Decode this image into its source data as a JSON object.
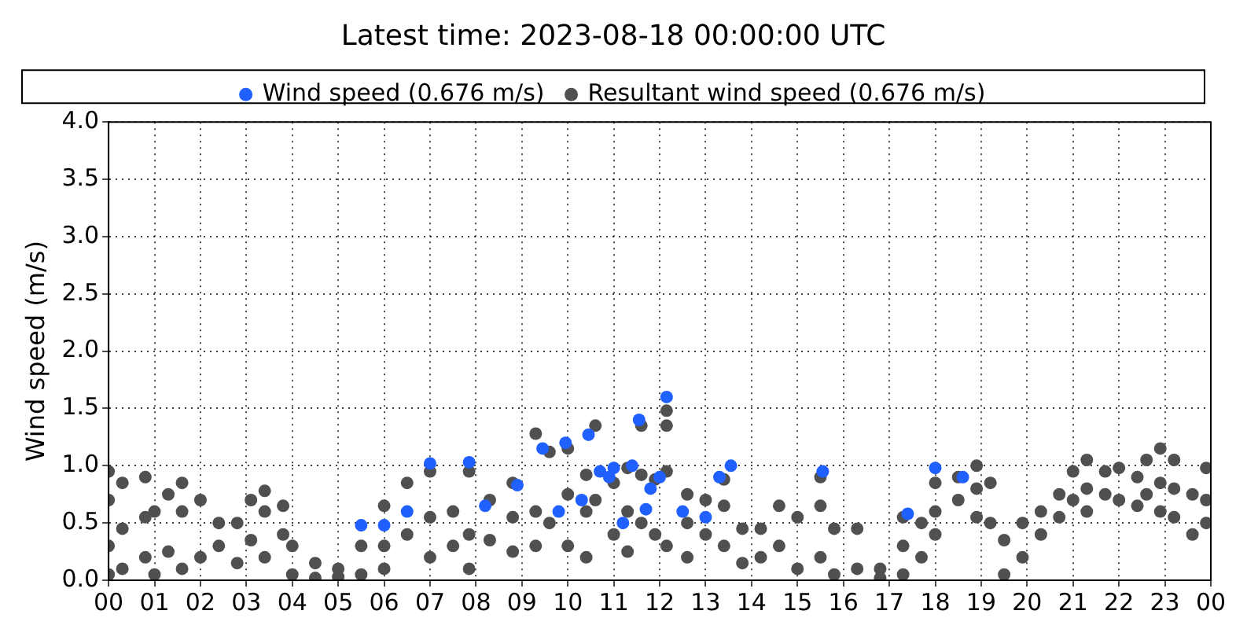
{
  "chart_data": {
    "type": "scatter",
    "title": "Latest time: 2023-08-18 00:00:00 UTC",
    "ylabel": "Wind speed (m/s)",
    "xlim": [
      0,
      24
    ],
    "xticks": [
      {
        "value": 0,
        "label": "00"
      },
      {
        "value": 1,
        "label": "01"
      },
      {
        "value": 2,
        "label": "02"
      },
      {
        "value": 3,
        "label": "03"
      },
      {
        "value": 4,
        "label": "04"
      },
      {
        "value": 5,
        "label": "05"
      },
      {
        "value": 6,
        "label": "06"
      },
      {
        "value": 7,
        "label": "07"
      },
      {
        "value": 8,
        "label": "08"
      },
      {
        "value": 9,
        "label": "09"
      },
      {
        "value": 10,
        "label": "10"
      },
      {
        "value": 11,
        "label": "11"
      },
      {
        "value": 12,
        "label": "12"
      },
      {
        "value": 13,
        "label": "13"
      },
      {
        "value": 14,
        "label": "14"
      },
      {
        "value": 15,
        "label": "15"
      },
      {
        "value": 16,
        "label": "16"
      },
      {
        "value": 17,
        "label": "17"
      },
      {
        "value": 18,
        "label": "18"
      },
      {
        "value": 19,
        "label": "19"
      },
      {
        "value": 20,
        "label": "20"
      },
      {
        "value": 21,
        "label": "21"
      },
      {
        "value": 22,
        "label": "22"
      },
      {
        "value": 23,
        "label": "23"
      },
      {
        "value": 24,
        "label": "00"
      }
    ],
    "ylim": [
      0,
      4
    ],
    "yticks": [
      {
        "value": 0,
        "label": "0.0"
      },
      {
        "value": 0.5,
        "label": "0.5"
      },
      {
        "value": 1,
        "label": "1.0"
      },
      {
        "value": 1.5,
        "label": "1.5"
      },
      {
        "value": 2,
        "label": "2.0"
      },
      {
        "value": 2.5,
        "label": "2.5"
      },
      {
        "value": 3,
        "label": "3.0"
      },
      {
        "value": 3.5,
        "label": "3.5"
      },
      {
        "value": 4,
        "label": "4.0"
      }
    ],
    "grid": true,
    "legend": "top",
    "marker": "circle",
    "series": [
      {
        "name": "Wind speed (0.676 m/s)",
        "color": "#2060ff",
        "x": [
          7.0,
          7.85,
          8.9,
          9.45,
          9.95,
          10.45,
          10.7,
          11.0,
          11.4,
          11.55,
          11.8,
          12.15,
          12.0,
          13.3,
          13.55,
          15.55,
          17.4,
          18.0,
          18.6,
          9.8,
          10.3,
          11.2,
          12.5,
          8.2,
          6.5,
          5.5,
          6.0,
          11.7,
          10.9,
          13.0
        ],
        "values": [
          1.02,
          1.03,
          0.83,
          1.15,
          1.2,
          1.27,
          0.95,
          0.98,
          1.0,
          1.4,
          0.8,
          1.6,
          0.9,
          0.9,
          1.0,
          0.95,
          0.58,
          0.98,
          0.9,
          0.6,
          0.7,
          0.5,
          0.6,
          0.65,
          0.6,
          0.48,
          0.48,
          0.62,
          0.9,
          0.55
        ]
      },
      {
        "name": "Resultant wind speed (0.676 m/s)",
        "color": "#505050",
        "x": [
          0,
          0,
          0,
          0,
          0.3,
          0.3,
          0.3,
          0.8,
          0.8,
          0.8,
          1,
          1,
          1.3,
          1.3,
          1.6,
          1.6,
          1.6,
          2,
          2,
          2.4,
          2.4,
          2.8,
          2.8,
          3.1,
          3.1,
          3.4,
          3.4,
          3.4,
          3.8,
          3.8,
          4,
          4,
          4.5,
          4.5,
          5,
          5,
          5.5,
          5.5,
          6,
          6,
          6,
          6.5,
          6.5,
          7,
          7,
          7,
          7.5,
          7.5,
          7.85,
          7.85,
          7.85,
          8.3,
          8.3,
          8.8,
          8.8,
          8.8,
          9.3,
          9.3,
          9.3,
          9.6,
          9.6,
          10,
          10,
          10,
          10.4,
          10.4,
          10.4,
          10.6,
          10.6,
          11,
          11,
          11.3,
          11.3,
          11.3,
          11.6,
          11.6,
          11.6,
          11.9,
          11.9,
          12.15,
          12.15,
          12.15,
          12.15,
          12.6,
          12.6,
          12.6,
          13,
          13,
          13.4,
          13.4,
          13.4,
          13.8,
          13.8,
          14.2,
          14.2,
          14.6,
          14.6,
          15,
          15,
          15.5,
          15.5,
          15.5,
          15.8,
          15.8,
          16.3,
          16.3,
          16.8,
          16.8,
          17.3,
          17.3,
          17.3,
          17.7,
          17.7,
          18,
          18,
          18,
          18.5,
          18.5,
          18.9,
          18.9,
          18.9,
          19.2,
          19.2,
          19.5,
          19.5,
          19.9,
          19.9,
          20.3,
          20.3,
          20.7,
          20.7,
          21,
          21,
          21.3,
          21.3,
          21.3,
          21.7,
          21.7,
          22,
          22,
          22.4,
          22.4,
          22.6,
          22.6,
          22.9,
          22.9,
          22.9,
          23.2,
          23.2,
          23.2,
          23.6,
          23.6,
          23.9,
          23.9,
          23.9
        ],
        "values": [
          0.95,
          0.7,
          0.3,
          0.05,
          0.85,
          0.45,
          0.1,
          0.9,
          0.55,
          0.2,
          0.6,
          0.05,
          0.75,
          0.25,
          0.85,
          0.6,
          0.1,
          0.7,
          0.2,
          0.5,
          0.3,
          0.5,
          0.15,
          0.7,
          0.35,
          0.78,
          0.6,
          0.2,
          0.65,
          0.4,
          0.3,
          0.05,
          0.15,
          0.02,
          0.1,
          0.03,
          0.3,
          0.05,
          0.65,
          0.3,
          0.1,
          0.85,
          0.4,
          0.95,
          0.55,
          0.2,
          0.6,
          0.3,
          0.95,
          0.4,
          0.1,
          0.7,
          0.35,
          0.85,
          0.55,
          0.25,
          1.28,
          0.6,
          0.3,
          1.12,
          0.5,
          1.15,
          0.75,
          0.3,
          0.92,
          0.6,
          0.2,
          1.35,
          0.7,
          0.85,
          0.4,
          0.98,
          0.6,
          0.25,
          1.35,
          0.92,
          0.5,
          0.88,
          0.4,
          1.48,
          1.35,
          0.95,
          0.3,
          0.75,
          0.5,
          0.2,
          0.7,
          0.4,
          0.88,
          0.65,
          0.3,
          0.45,
          0.15,
          0.45,
          0.2,
          0.65,
          0.3,
          0.55,
          0.1,
          0.9,
          0.65,
          0.2,
          0.45,
          0.05,
          0.45,
          0.1,
          0.1,
          0.02,
          0.55,
          0.3,
          0.05,
          0.5,
          0.2,
          0.85,
          0.6,
          0.4,
          0.9,
          0.7,
          1.0,
          0.8,
          0.55,
          0.85,
          0.5,
          0.35,
          0.05,
          0.5,
          0.2,
          0.6,
          0.4,
          0.75,
          0.55,
          0.95,
          0.7,
          1.05,
          0.8,
          0.6,
          0.95,
          0.75,
          0.98,
          0.7,
          0.9,
          0.65,
          1.05,
          0.75,
          1.15,
          0.85,
          0.6,
          1.05,
          0.8,
          0.55,
          0.75,
          0.4,
          0.98,
          0.7,
          0.5
        ]
      }
    ]
  }
}
